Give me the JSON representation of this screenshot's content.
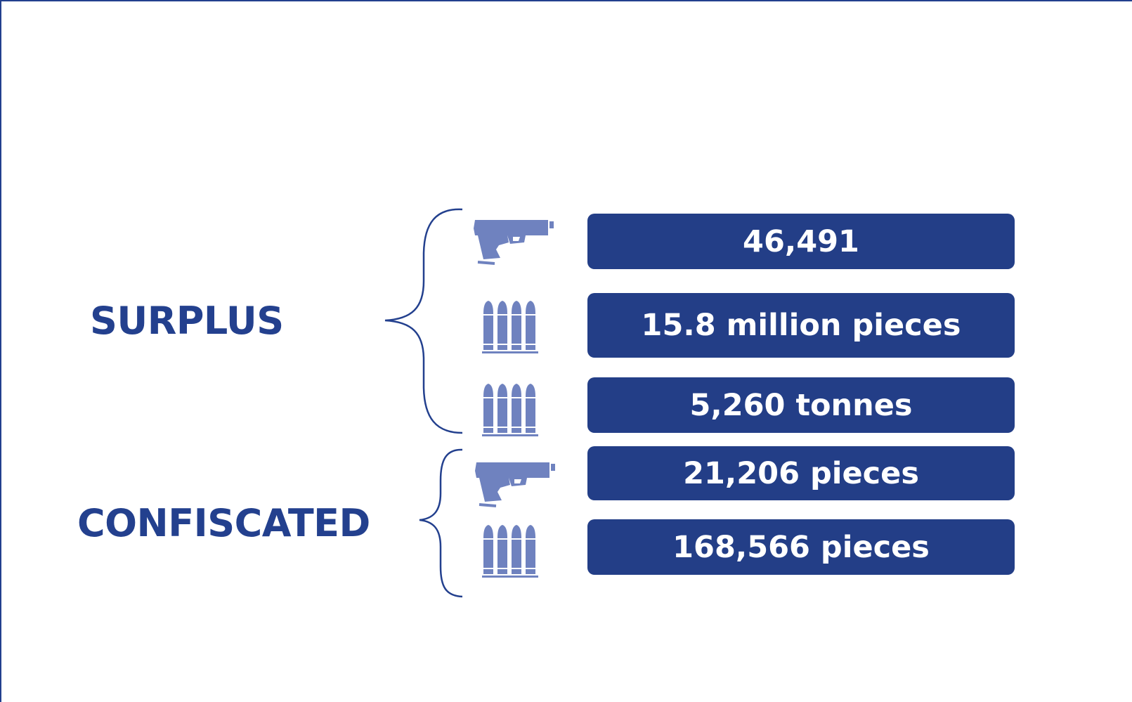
{
  "colors": {
    "primary": "#23408e",
    "icon": "#6f82bf",
    "bar_text": "#ffffff"
  },
  "groups": {
    "surplus": {
      "label": "SURPLUS",
      "items": [
        {
          "icon": "pistol-icon",
          "value": "46,491"
        },
        {
          "icon": "ammunition-icon",
          "value": "15.8 million pieces"
        },
        {
          "icon": "ammunition-icon",
          "value": "5,260 tonnes"
        }
      ]
    },
    "confiscated": {
      "label": "CONFISCATED",
      "items": [
        {
          "icon": "pistol-icon",
          "value": "21,206 pieces"
        },
        {
          "icon": "ammunition-icon",
          "value": "168,566 pieces"
        }
      ]
    }
  }
}
